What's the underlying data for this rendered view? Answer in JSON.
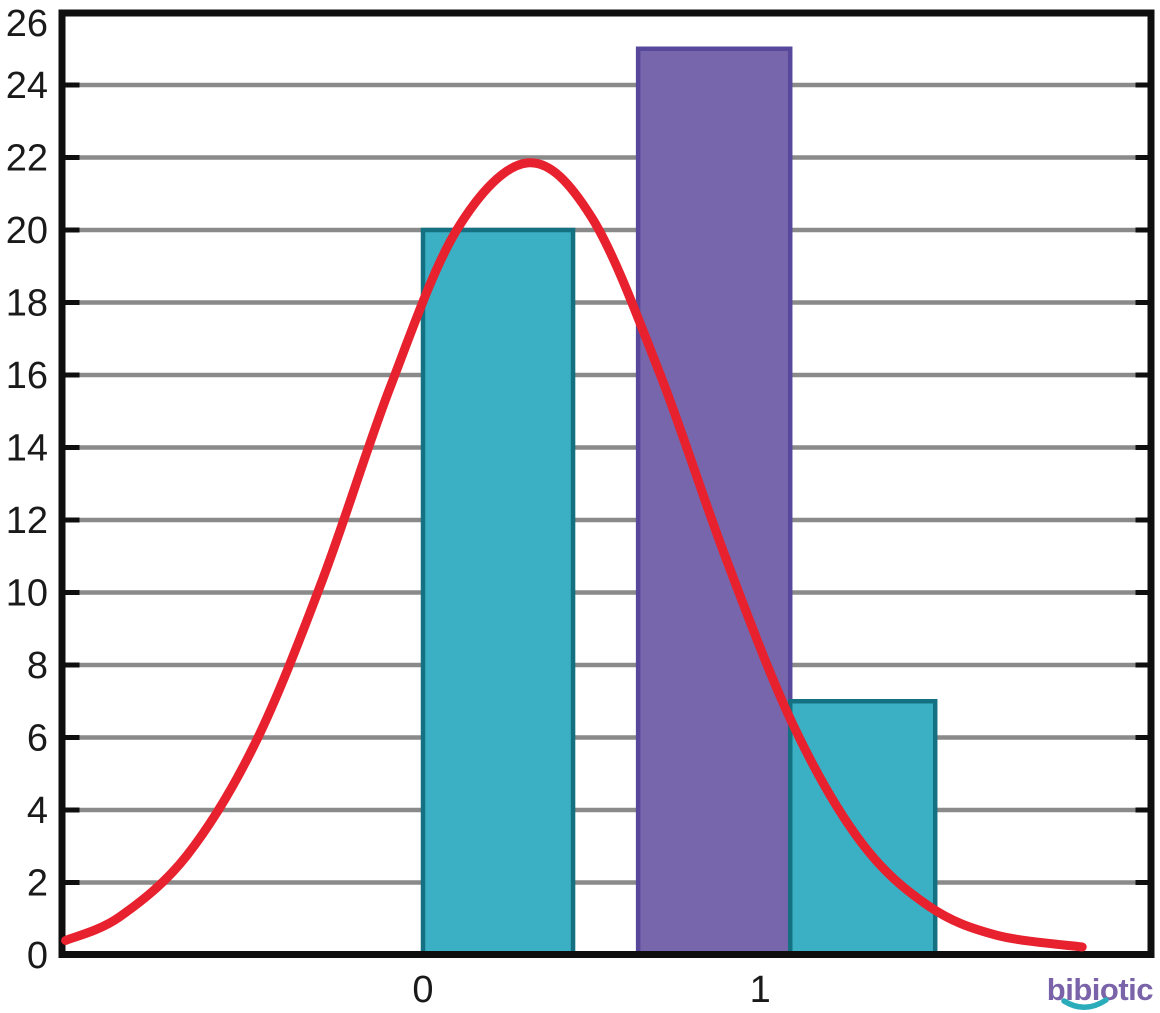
{
  "branding": {
    "logo_text": "bibiotic",
    "logo_color": "#7a63a9",
    "smile_color": "#2aacba"
  },
  "chart_data": {
    "type": "histogram_with_curve",
    "title": "",
    "xlabel": "",
    "ylabel": "",
    "xlim": [
      -1.06,
      2.155
    ],
    "ylim": [
      0,
      26
    ],
    "xticks": [
      0,
      1
    ],
    "yticks": [
      0,
      2,
      4,
      6,
      8,
      10,
      12,
      14,
      16,
      18,
      20,
      22,
      24,
      26
    ],
    "grid": {
      "show": true,
      "color": "#8a8a8a",
      "values": [
        2,
        4,
        6,
        8,
        10,
        12,
        14,
        16,
        18,
        20,
        22,
        24
      ]
    },
    "axis_color": "#0f0f0f",
    "label_color": "#1a1a1a",
    "legend": "none",
    "bars": [
      {
        "name": "teal-bar-0",
        "x_start": 0.0,
        "x_end": 0.445,
        "height": 20,
        "fill": "#3bafc4",
        "stroke": "#137181"
      },
      {
        "name": "purple-bar",
        "x_start": 0.638,
        "x_end": 1.089,
        "height": 25,
        "fill": "#7766ac",
        "stroke": "#57489b"
      },
      {
        "name": "teal-bar-1",
        "x_start": 1.089,
        "x_end": 1.519,
        "height": 7,
        "fill": "#3bafc4",
        "stroke": "#137181"
      }
    ],
    "curve": {
      "name": "bell-curve",
      "color": "#e8212e",
      "stroke_width": 9,
      "model": {
        "shape": "gaussian",
        "amplitude": 21.85,
        "mean": 0.31,
        "sigma": 0.5
      },
      "points": [
        [
          -1.06,
          0.4
        ],
        [
          -0.9,
          1.05
        ],
        [
          -0.7,
          2.75
        ],
        [
          -0.5,
          5.8
        ],
        [
          -0.3,
          10.3
        ],
        [
          -0.1,
          15.6
        ],
        [
          0.1,
          20.0
        ],
        [
          0.31,
          21.85
        ],
        [
          0.5,
          20.35
        ],
        [
          0.7,
          16.1
        ],
        [
          0.9,
          10.9
        ],
        [
          1.1,
          6.3
        ],
        [
          1.3,
          3.1
        ],
        [
          1.5,
          1.35
        ],
        [
          1.7,
          0.55
        ],
        [
          1.955,
          0.22
        ]
      ]
    }
  }
}
